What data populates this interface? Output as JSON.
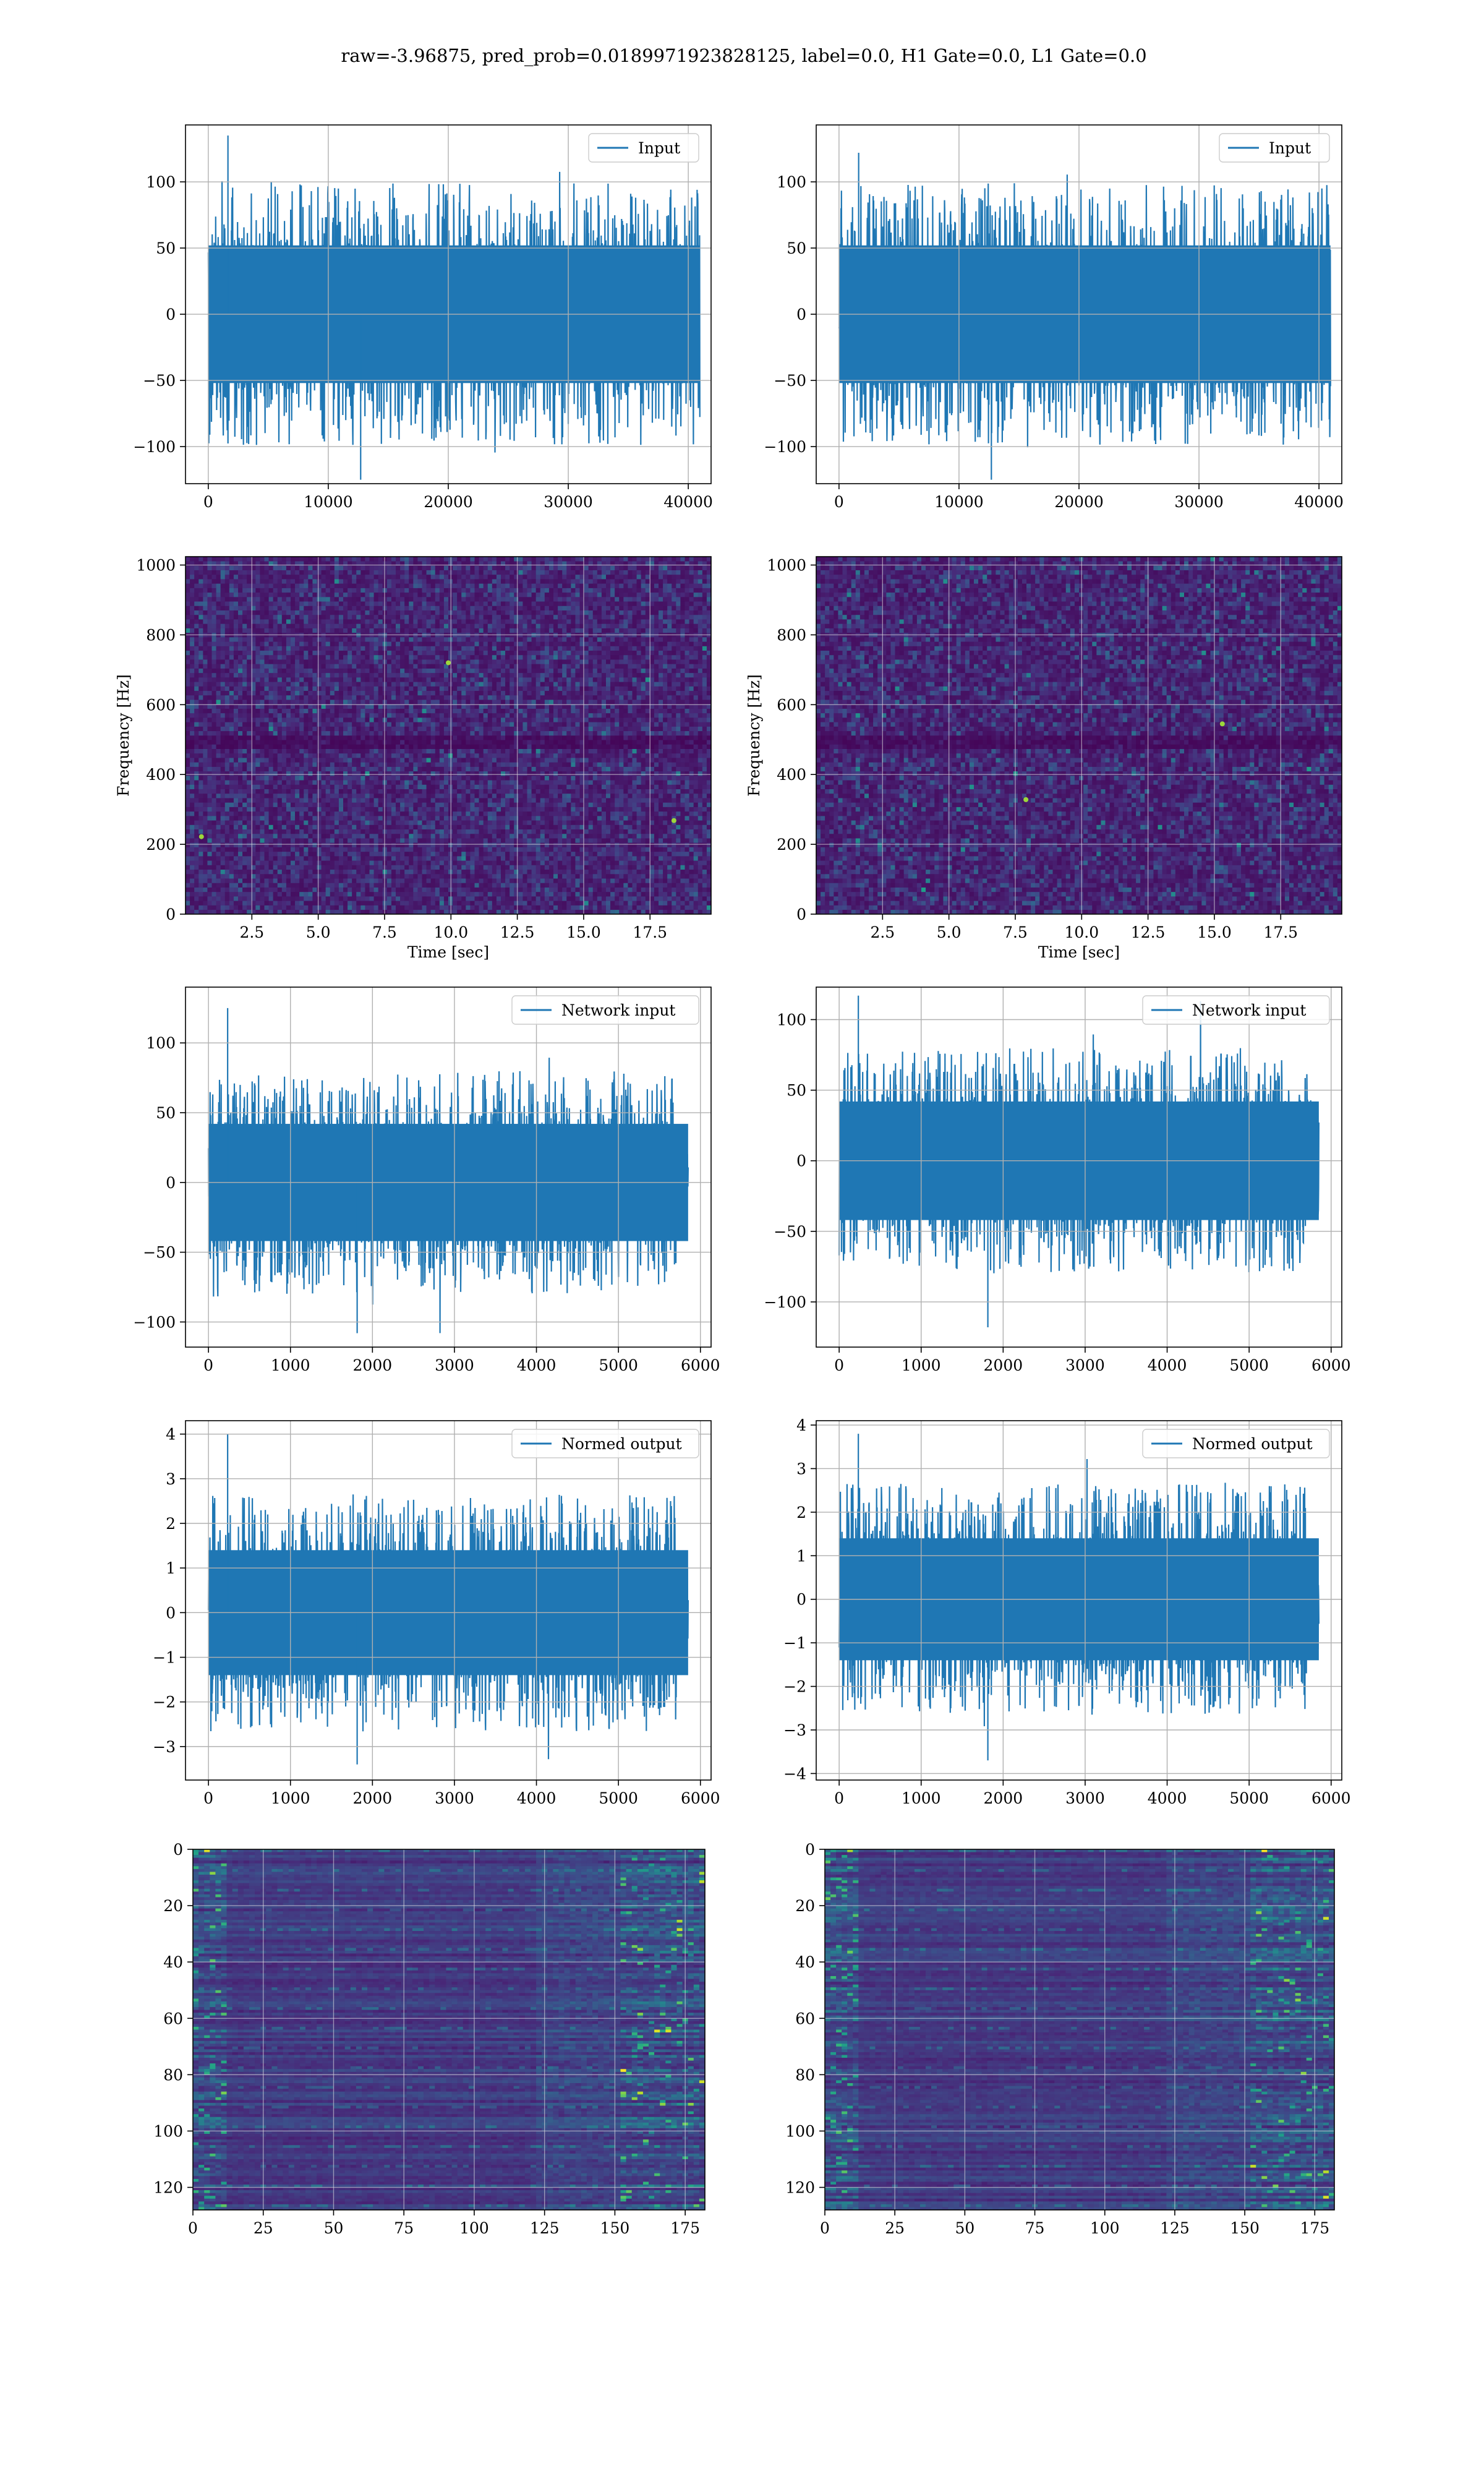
{
  "figure": {
    "title": "raw=-3.96875, pred_prob=0.0189971923828125, label=0.0, H1 Gate=0.0, L1 Gate=0.0"
  },
  "colors": {
    "series": "#1f77b4",
    "grid": "#b0b0b0",
    "viridis_dark": "#3b0f4f",
    "viridis_light": "#fde725"
  },
  "chart_data": [
    {
      "id": "r1-left",
      "type": "line",
      "legend": "Input",
      "legend_position": "upper right",
      "xlim": [
        -1900,
        41900
      ],
      "ylim": [
        -128,
        143
      ],
      "grid": true,
      "xticks": [
        0,
        10000,
        20000,
        30000,
        40000
      ],
      "yticks": [
        -100,
        -50,
        0,
        50,
        100
      ],
      "series": [
        {
          "name": "Input",
          "x_range": [
            0,
            40960
          ],
          "core_amplitude": 52,
          "peak_max": 135,
          "peak_min": -125
        }
      ]
    },
    {
      "id": "r1-right",
      "type": "line",
      "legend": "Input",
      "legend_position": "upper right",
      "xlim": [
        -1900,
        41900
      ],
      "ylim": [
        -128,
        143
      ],
      "grid": true,
      "xticks": [
        0,
        10000,
        20000,
        30000,
        40000
      ],
      "yticks": [
        -100,
        -50,
        0,
        50,
        100
      ],
      "series": [
        {
          "name": "Input",
          "x_range": [
            0,
            40960
          ],
          "core_amplitude": 52,
          "peak_max": 122,
          "peak_min": -125
        }
      ]
    },
    {
      "id": "r2-left",
      "type": "heatmap",
      "xlabel": "Time [sec]",
      "ylabel": "Frequency [Hz]",
      "xlim": [
        0,
        19.8
      ],
      "ylim": [
        0,
        1024
      ],
      "grid": true,
      "xticks": [
        2.5,
        5.0,
        7.5,
        10.0,
        12.5,
        15.0,
        17.5
      ],
      "yticks": [
        0,
        200,
        400,
        600,
        800,
        1000
      ],
      "xtick_labels": [
        "2.5",
        "5.0",
        "7.5",
        "10.0",
        "12.5",
        "15.0",
        "17.5"
      ],
      "dark_band_hz": [
        485,
        505
      ],
      "bright_spots": [
        {
          "t": 0.6,
          "f": 222
        },
        {
          "t": 9.9,
          "f": 720
        },
        {
          "t": 18.4,
          "f": 268
        }
      ]
    },
    {
      "id": "r2-right",
      "type": "heatmap",
      "xlabel": "Time [sec]",
      "ylabel": "Frequency [Hz]",
      "xlim": [
        0,
        19.8
      ],
      "ylim": [
        0,
        1024
      ],
      "grid": true,
      "xticks": [
        2.5,
        5.0,
        7.5,
        10.0,
        12.5,
        15.0,
        17.5
      ],
      "yticks": [
        0,
        200,
        400,
        600,
        800,
        1000
      ],
      "xtick_labels": [
        "2.5",
        "5.0",
        "7.5",
        "10.0",
        "12.5",
        "15.0",
        "17.5"
      ],
      "dark_band_hz": [
        485,
        505
      ],
      "bright_spots": [
        {
          "t": 7.9,
          "f": 328
        },
        {
          "t": 15.3,
          "f": 545
        }
      ]
    },
    {
      "id": "r3-left",
      "type": "line",
      "legend": "Network input",
      "legend_position": "upper right",
      "xlim": [
        -280,
        6130
      ],
      "ylim": [
        -118,
        140
      ],
      "grid": true,
      "xticks": [
        0,
        1000,
        2000,
        3000,
        4000,
        5000,
        6000
      ],
      "yticks": [
        -100,
        -50,
        0,
        50,
        100
      ],
      "series": [
        {
          "name": "Network input",
          "x_range": [
            0,
            5850
          ],
          "core_amplitude": 42,
          "peak_max": 125,
          "peak_min": -108
        }
      ]
    },
    {
      "id": "r3-right",
      "type": "line",
      "legend": "Network input",
      "legend_position": "upper right",
      "xlim": [
        -280,
        6130
      ],
      "ylim": [
        -132,
        123
      ],
      "grid": true,
      "xticks": [
        0,
        1000,
        2000,
        3000,
        4000,
        5000,
        6000
      ],
      "yticks": [
        -100,
        -50,
        0,
        50,
        100
      ],
      "series": [
        {
          "name": "Network input",
          "x_range": [
            0,
            5850
          ],
          "core_amplitude": 42,
          "peak_max": 117,
          "peak_min": -118
        }
      ]
    },
    {
      "id": "r4-left",
      "type": "line",
      "legend": "Normed output",
      "legend_position": "upper right",
      "xlim": [
        -280,
        6130
      ],
      "ylim": [
        -3.75,
        4.3
      ],
      "grid": true,
      "xticks": [
        0,
        1000,
        2000,
        3000,
        4000,
        5000,
        6000
      ],
      "yticks": [
        -3,
        -2,
        -1,
        0,
        1,
        2,
        3,
        4
      ],
      "series": [
        {
          "name": "Normed output",
          "x_range": [
            0,
            5850
          ],
          "core_amplitude": 1.4,
          "peak_max": 4.0,
          "peak_min": -3.4
        }
      ]
    },
    {
      "id": "r4-right",
      "type": "line",
      "legend": "Normed output",
      "legend_position": "upper right",
      "xlim": [
        -280,
        6130
      ],
      "ylim": [
        -4.15,
        4.1
      ],
      "grid": true,
      "xticks": [
        0,
        1000,
        2000,
        3000,
        4000,
        5000,
        6000
      ],
      "yticks": [
        -4,
        -3,
        -2,
        -1,
        0,
        1,
        2,
        3,
        4
      ],
      "series": [
        {
          "name": "Normed output",
          "x_range": [
            0,
            5850
          ],
          "core_amplitude": 1.4,
          "peak_max": 3.8,
          "peak_min": -3.7
        }
      ]
    },
    {
      "id": "r5-left",
      "type": "heatmap",
      "xlim": [
        0,
        182
      ],
      "ylim": [
        128,
        0
      ],
      "grid": true,
      "xticks": [
        0,
        25,
        50,
        75,
        100,
        125,
        150,
        175
      ],
      "yticks": [
        0,
        20,
        40,
        60,
        80,
        100,
        120
      ],
      "rows": 128,
      "cols": 182
    },
    {
      "id": "r5-right",
      "type": "heatmap",
      "xlim": [
        0,
        182
      ],
      "ylim": [
        128,
        0
      ],
      "grid": true,
      "xticks": [
        0,
        25,
        50,
        75,
        100,
        125,
        150,
        175
      ],
      "yticks": [
        0,
        20,
        40,
        60,
        80,
        100,
        120
      ],
      "rows": 128,
      "cols": 182
    }
  ]
}
